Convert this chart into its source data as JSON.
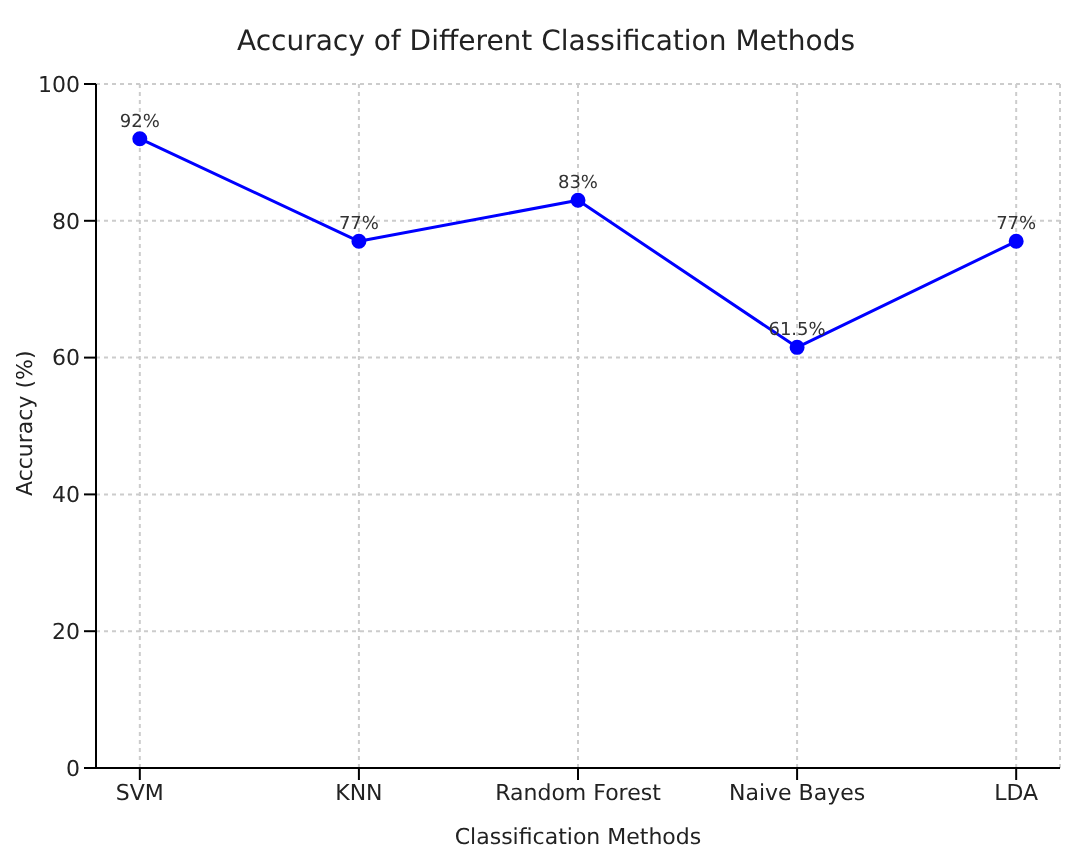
{
  "chart_data": {
    "type": "line",
    "title": "Accuracy of Different Classification Methods",
    "xlabel": "Classification Methods",
    "ylabel": "Accuracy (%)",
    "categories": [
      "SVM",
      "KNN",
      "Random Forest",
      "Naive Bayes",
      "LDA"
    ],
    "series": [
      {
        "color": "#0000ff",
        "values": [
          92,
          77,
          83,
          61.5,
          77
        ],
        "value_labels": [
          "92%",
          "77%",
          "83%",
          "61.5%",
          "77%"
        ]
      }
    ],
    "ylim": [
      0,
      100
    ],
    "yticks": [
      0,
      20,
      40,
      60,
      80,
      100
    ],
    "grid": true,
    "marker": "circle",
    "line_style": "solid",
    "legend": false
  }
}
